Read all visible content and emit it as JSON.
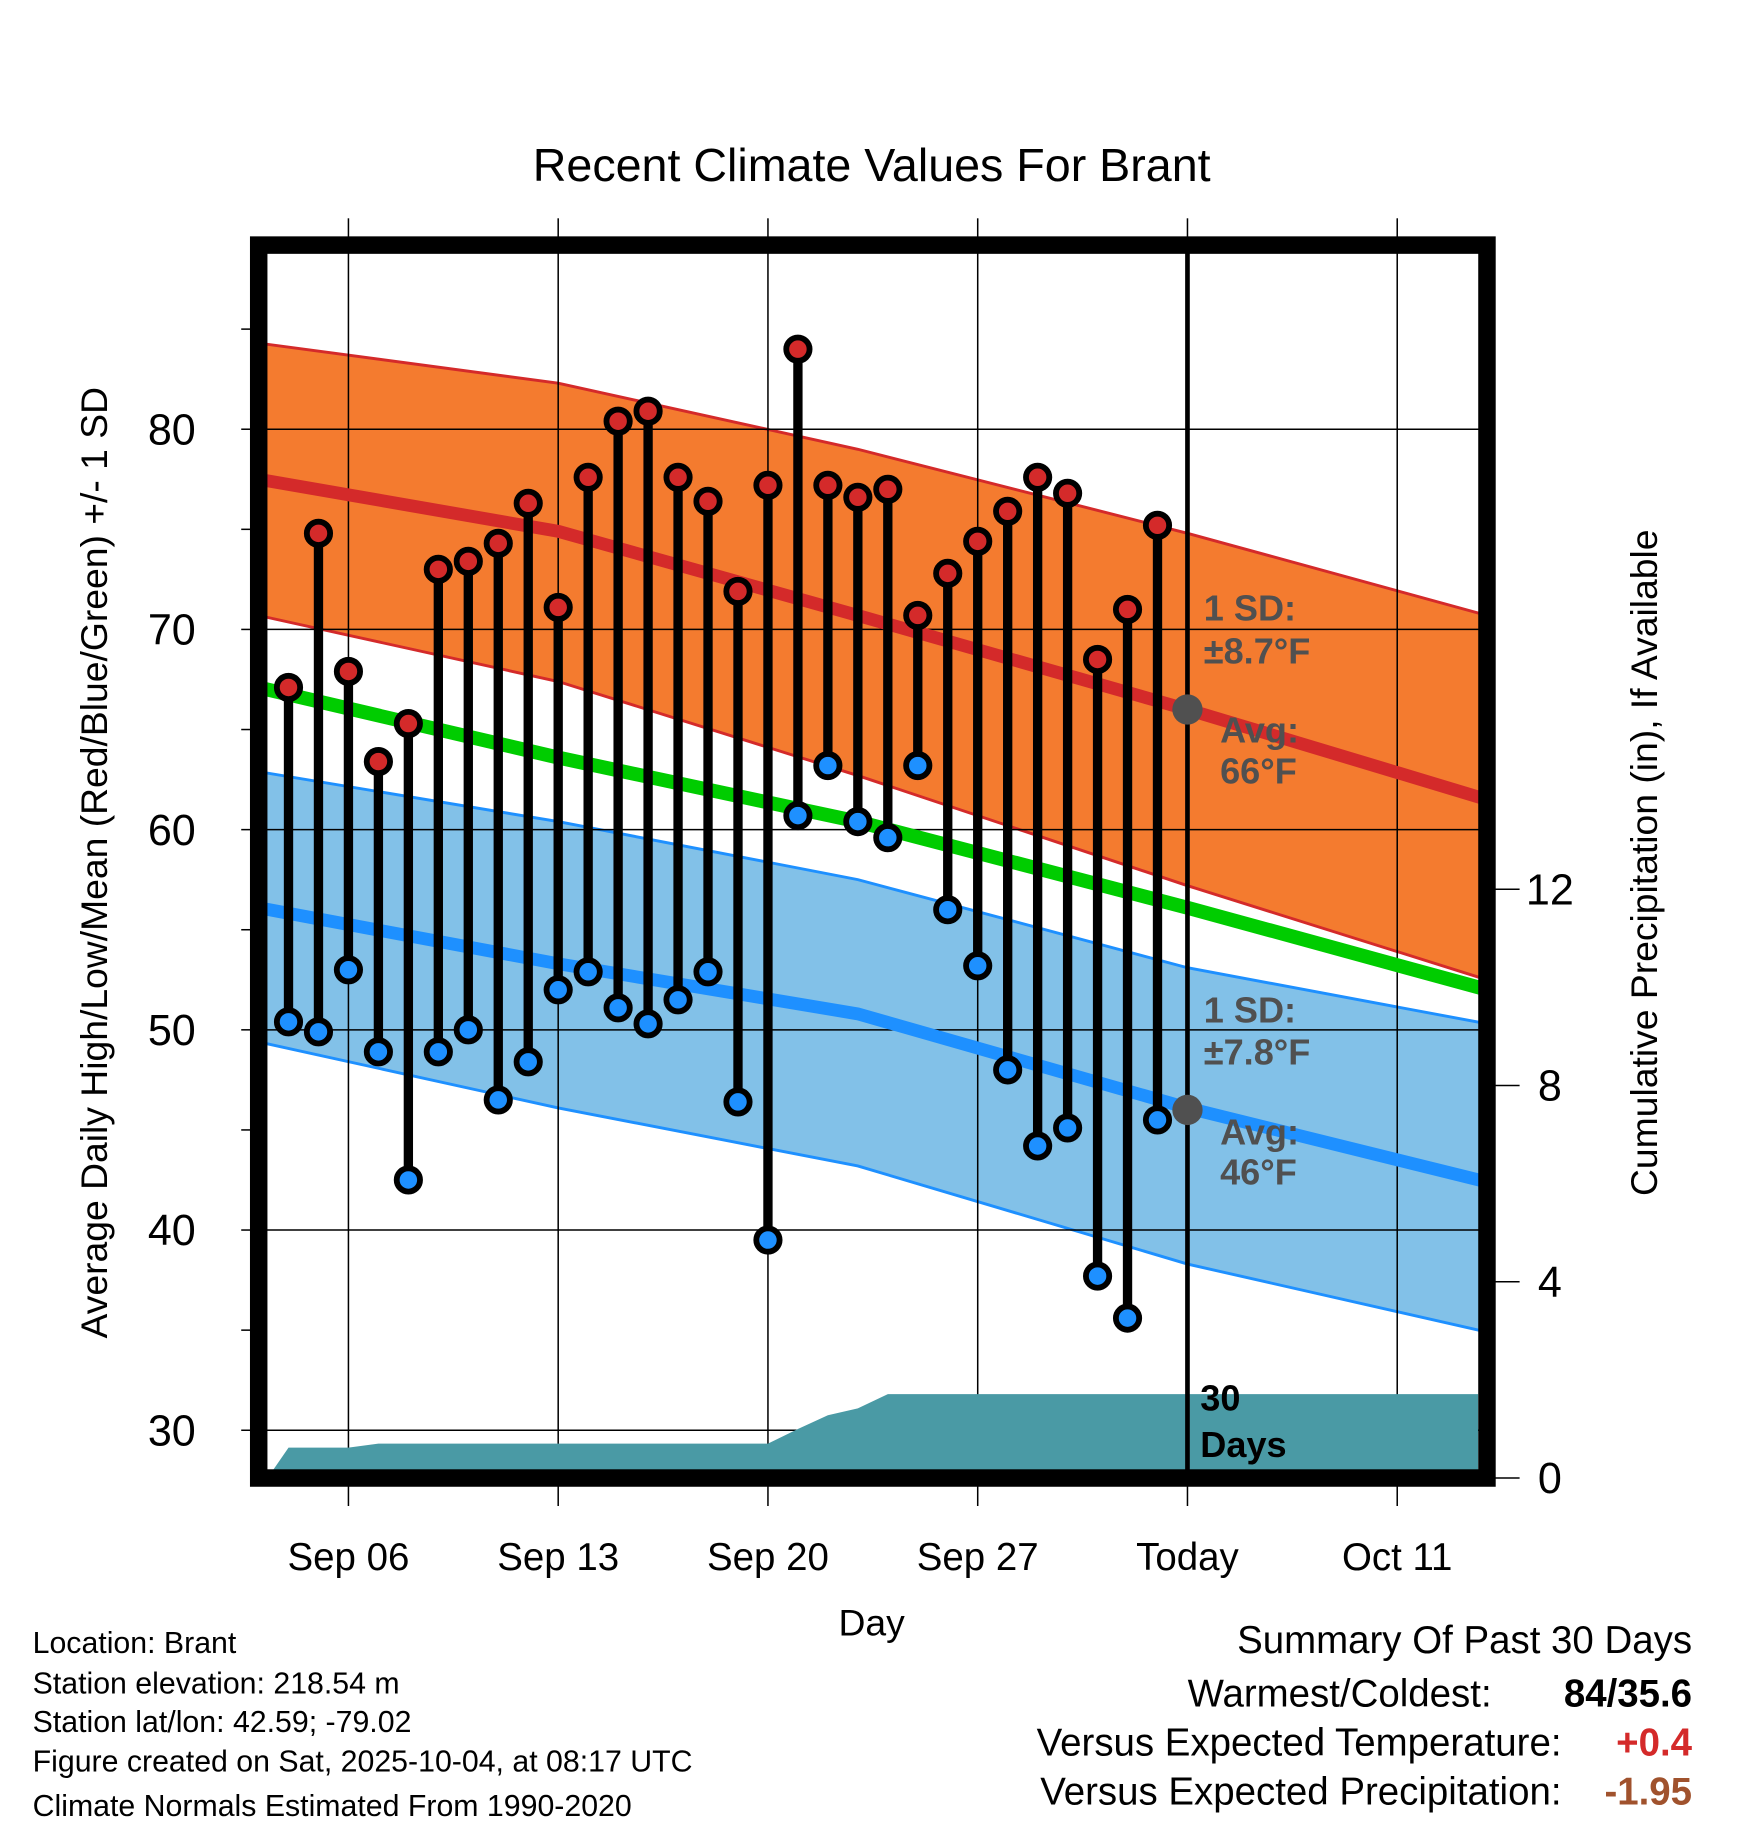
{
  "chart_data": {
    "type": "line",
    "title": "Recent Climate Values For Brant",
    "xlabel": "Day",
    "ylabel": "Average Daily High/Low/Mean (Red/Blue/Green) +/- 1 SD",
    "y2label": "Cumulative Precipitation (in), If Available",
    "ylim": [
      27.6,
      89.2
    ],
    "y2lim": [
      0,
      20.2
    ],
    "yticks": [
      "30",
      "40",
      "50",
      "60",
      "70",
      "80"
    ],
    "y2ticks": [
      "0",
      "4",
      "8",
      "12"
    ],
    "xticks": [
      {
        "date": "09-06",
        "label": "Sep 06"
      },
      {
        "date": "09-13",
        "label": "Sep 13"
      },
      {
        "date": "09-20",
        "label": "Sep 20"
      },
      {
        "date": "09-27",
        "label": "Sep 27"
      },
      {
        "date": "10-04",
        "label": "Today"
      },
      {
        "date": "10-11",
        "label": "Oct 11"
      }
    ],
    "xlim": [
      "09-03.3",
      "10-13.7"
    ],
    "today": "10-04",
    "days": [
      "09-04",
      "09-05",
      "09-06",
      "09-07",
      "09-08",
      "09-09",
      "09-10",
      "09-11",
      "09-12",
      "09-13",
      "09-14",
      "09-15",
      "09-16",
      "09-17",
      "09-18",
      "09-19",
      "09-20",
      "09-21",
      "09-22",
      "09-23",
      "09-24",
      "09-25",
      "09-26",
      "09-27",
      "09-28",
      "09-29",
      "09-30",
      "10-01",
      "10-02",
      "10-03"
    ],
    "series": [
      {
        "name": "Daily High",
        "color": "#d42a2a",
        "values": [
          67.1,
          74.8,
          67.9,
          63.4,
          65.3,
          73.0,
          73.4,
          74.3,
          76.3,
          71.1,
          77.6,
          80.4,
          80.9,
          77.6,
          76.4,
          71.9,
          77.2,
          84.0,
          77.2,
          76.6,
          77.0,
          70.7,
          72.8,
          74.4,
          75.9,
          77.6,
          76.8,
          68.5,
          71.0,
          75.2
        ]
      },
      {
        "name": "Daily Low",
        "color": "#1e90ff",
        "values": [
          50.4,
          49.9,
          53.0,
          48.9,
          42.5,
          48.9,
          50.0,
          46.5,
          48.4,
          52.0,
          52.9,
          51.1,
          50.3,
          51.5,
          52.9,
          46.4,
          39.5,
          60.7,
          63.2,
          60.4,
          59.6,
          63.2,
          56.0,
          53.2,
          48.0,
          44.2,
          45.1,
          37.7,
          35.6,
          45.5
        ]
      }
    ],
    "normals": {
      "dates": [
        "09-03",
        "09-13",
        "09-23",
        "10-04",
        "10-14"
      ],
      "high_upper": [
        84.3,
        82.3,
        79.0,
        74.8,
        70.7
      ],
      "high_avg": [
        77.5,
        74.9,
        70.7,
        66.0,
        61.5
      ],
      "high_lower": [
        70.7,
        67.4,
        62.7,
        57.2,
        52.5
      ],
      "mean": [
        67.1,
        63.6,
        60.4,
        56.1,
        52.0
      ],
      "low_upper": [
        62.9,
        60.4,
        57.5,
        53.1,
        50.3
      ],
      "low_avg": [
        56.1,
        53.3,
        50.8,
        46.1,
        42.4
      ],
      "low_lower": [
        49.4,
        46.1,
        43.2,
        38.3,
        34.9
      ]
    },
    "precip": {
      "dates": [
        "09-03.3",
        "09-04",
        "09-06",
        "09-07",
        "09-20",
        "09-21",
        "09-22",
        "09-23",
        "09-24",
        "10-13.7"
      ],
      "values": [
        0,
        0.62,
        0.62,
        0.7,
        0.7,
        1.0,
        1.28,
        1.42,
        1.71,
        1.71
      ]
    },
    "colors": {
      "high_band": "#f47b2f",
      "high_line": "#d42a2a",
      "low_band": "#82c1e8",
      "low_line": "#1e90ff",
      "mean_line": "#00cc00",
      "precip": "#4a9aa5",
      "annot": "#505050"
    },
    "annotations": {
      "high_sd_label": "1 SD:",
      "high_sd_value": "±8.7°F",
      "high_avg_label": "Avg:",
      "high_avg_value": "66°F",
      "low_sd_label": "1 SD:",
      "low_sd_value": "±7.8°F",
      "low_avg_label": "Avg:",
      "low_avg_value": "46°F",
      "days_num": "30",
      "days_word": "Days",
      "today_high_avg": 66,
      "today_low_avg": 46
    }
  },
  "info": {
    "location": "Location: Brant",
    "elevation": "Station elevation: 218.54 m",
    "latlon": "Station lat/lon: 42.59; -79.02",
    "created": "Figure created on Sat, 2025-10-04, at 08:17 UTC",
    "normals": "Climate Normals Estimated From 1990-2020"
  },
  "summary": {
    "title": "Summary Of Past 30 Days",
    "warmest_label": "Warmest/Coldest:",
    "warmest_value": "84/35.6",
    "temp_label": "Versus Expected Temperature:",
    "temp_value": "+0.4",
    "temp_color": "#d42a2a",
    "precip_label": "Versus Expected Precipitation:",
    "precip_value": "-1.95",
    "precip_color": "#a0522d"
  }
}
